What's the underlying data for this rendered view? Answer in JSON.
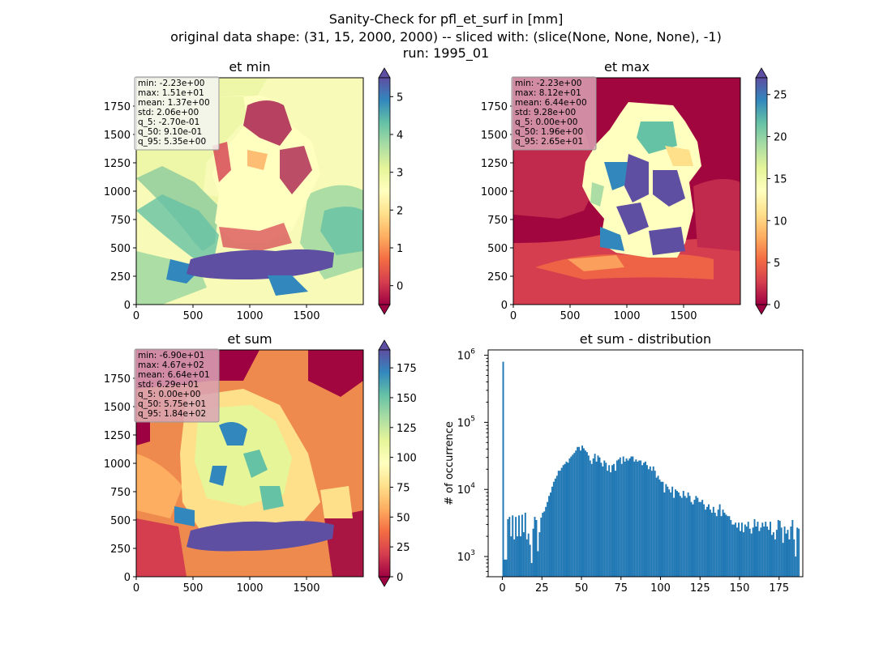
{
  "suptitle": {
    "line1": "Sanity-Check for pfl_et_surf in [mm]",
    "line2": "original data shape: (31, 15, 2000, 2000) -- sliced with: (slice(None, None, None), -1)",
    "line3": "run: 1995_01"
  },
  "colors": {
    "hist_bar": "#1f77b4",
    "stats_box_light": "#f5f5f5",
    "stats_box_dark": "#d9a3b5",
    "stats_box_border": "#999999"
  },
  "chart_data": [
    {
      "type": "heatmap",
      "title": "et min",
      "colormap": "Spectral",
      "xlim": [
        0,
        2000
      ],
      "ylim": [
        0,
        2000
      ],
      "xticks": [
        "0",
        "500",
        "1000",
        "1500"
      ],
      "yticks": [
        "0",
        "250",
        "500",
        "750",
        "1000",
        "1250",
        "1500",
        "1750"
      ],
      "colorbar": {
        "min": -0.5,
        "max": 5.5,
        "ticks": [
          "0",
          "1",
          "2",
          "3",
          "4",
          "5"
        ],
        "extend": "both"
      },
      "stats": [
        "min: -2.23e+00",
        "max: 1.51e+01",
        "mean: 1.37e+00",
        "std: 2.06e+00",
        "q_5: -2.70e-01",
        "q_50: 9.10e-01",
        "q_95: 5.35e+00"
      ]
    },
    {
      "type": "heatmap",
      "title": "et max",
      "colormap": "Spectral",
      "xlim": [
        0,
        2000
      ],
      "ylim": [
        0,
        2000
      ],
      "xticks": [
        "0",
        "500",
        "1000",
        "1500"
      ],
      "yticks": [
        "0",
        "250",
        "500",
        "750",
        "1000",
        "1250",
        "1500",
        "1750"
      ],
      "colorbar": {
        "min": 0,
        "max": 27,
        "ticks": [
          "0",
          "5",
          "10",
          "15",
          "20",
          "25"
        ],
        "extend": "both"
      },
      "stats": [
        "min: -2.23e+00",
        "max: 8.12e+01",
        "mean: 6.44e+00",
        "std: 9.28e+00",
        "q_5: 0.00e+00",
        "q_50: 1.96e+00",
        "q_95: 2.65e+01"
      ]
    },
    {
      "type": "heatmap",
      "title": "et sum",
      "colormap": "Spectral",
      "xlim": [
        0,
        2000
      ],
      "ylim": [
        0,
        2000
      ],
      "xticks": [
        "0",
        "500",
        "1000",
        "1500"
      ],
      "yticks": [
        "0",
        "250",
        "500",
        "750",
        "1000",
        "1250",
        "1500",
        "1750"
      ],
      "colorbar": {
        "min": 0,
        "max": 190,
        "ticks": [
          "0",
          "25",
          "50",
          "75",
          "100",
          "125",
          "150",
          "175"
        ],
        "extend": "both"
      },
      "stats": [
        "min: -6.90e+01",
        "max: 4.67e+02",
        "mean: 6.64e+01",
        "std: 6.29e+01",
        "q_5: 0.00e+00",
        "q_50: 5.75e+01",
        "q_95: 1.84e+02"
      ]
    },
    {
      "type": "bar",
      "title": "et sum - distribution",
      "ylabel": "# of occurrence",
      "xlabel": "",
      "yscale": "log",
      "xlim": [
        -9,
        190
      ],
      "ylim": [
        500,
        1200000
      ],
      "xticks": [
        "0",
        "25",
        "50",
        "75",
        "100",
        "125",
        "150",
        "175"
      ],
      "yticks": [
        "10^3",
        "10^4",
        "10^5",
        "10^6"
      ],
      "bin_width": 1,
      "bins_start": 0,
      "counts": [
        800000,
        900,
        900,
        3600,
        3900,
        2000,
        4100,
        1800,
        3900,
        2000,
        4100,
        2000,
        4200,
        2300,
        4500,
        1800,
        2200,
        1500,
        800,
        2600,
        3900,
        3500,
        1200,
        2300,
        3800,
        4500,
        4700,
        5500,
        6500,
        8000,
        9000,
        11000,
        13000,
        14500,
        16000,
        19000,
        19000,
        21000,
        23000,
        24000,
        26000,
        25000,
        29000,
        31000,
        33000,
        35000,
        38000,
        43000,
        43000,
        38000,
        45000,
        41000,
        38000,
        36000,
        32000,
        27000,
        24000,
        29000,
        34000,
        26000,
        32000,
        30000,
        25000,
        22000,
        27000,
        25000,
        19000,
        23000,
        18000,
        23000,
        24000,
        19000,
        27000,
        28000,
        30000,
        24000,
        31000,
        26000,
        29000,
        27000,
        29000,
        31000,
        31000,
        26000,
        28000,
        26000,
        27000,
        27000,
        23000,
        25000,
        26000,
        23000,
        20000,
        22000,
        19000,
        22000,
        19000,
        15000,
        16000,
        14000,
        13000,
        13000,
        9000,
        12000,
        11000,
        10000,
        9000,
        11000,
        7500,
        10000,
        9500,
        9000,
        8000,
        7500,
        9500,
        8000,
        7500,
        9000,
        8000,
        6500,
        6000,
        7000,
        8000,
        7500,
        6500,
        6500,
        7000,
        6000,
        5000,
        5500,
        6000,
        5000,
        4500,
        5500,
        4500,
        4000,
        5000,
        6000,
        4000,
        5000,
        4500,
        4200,
        4000,
        4000,
        3500,
        3000,
        3000,
        3200,
        2700,
        3200,
        2400,
        3200,
        2300,
        3000,
        2800,
        3300,
        2600,
        2200,
        2700,
        3600,
        2800,
        3300,
        2400,
        2700,
        3200,
        2800,
        3300,
        2800,
        2500,
        3300,
        2100,
        2300,
        1800,
        2500,
        3500,
        3400,
        2700,
        1600,
        2800,
        2200,
        2500,
        1800,
        2800,
        3500,
        1800,
        1000,
        2700,
        2600
      ]
    }
  ]
}
